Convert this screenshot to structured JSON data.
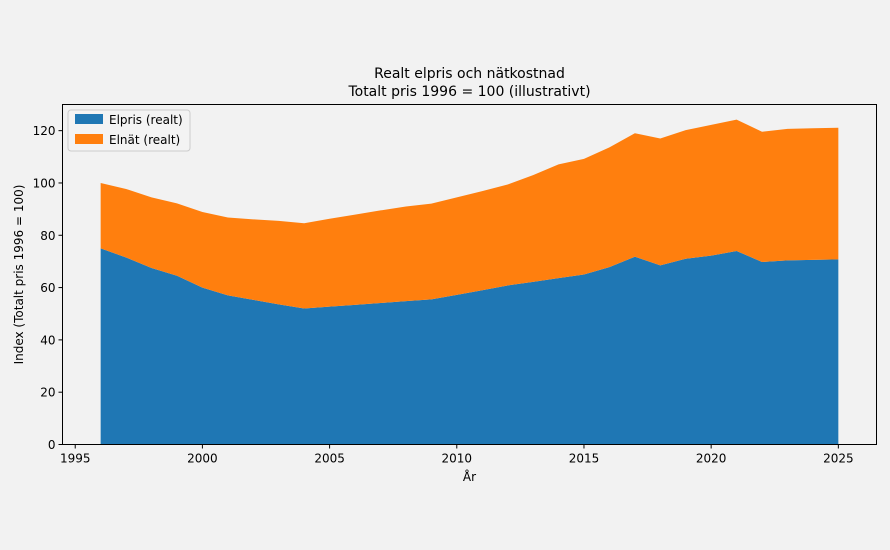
{
  "chart_data": {
    "type": "area",
    "stacked": true,
    "title": "Realt elpris och nätkostnad",
    "subtitle": "Totalt pris 1996 = 100 (illustrativt)",
    "xlabel": "År",
    "ylabel": "Index (Totalt pris 1996 = 100)",
    "xlim": [
      1994.5,
      2026.5
    ],
    "ylim": [
      0,
      130
    ],
    "xticks": [
      1995,
      2000,
      2005,
      2010,
      2015,
      2020,
      2025
    ],
    "yticks": [
      0,
      20,
      40,
      60,
      80,
      100,
      120
    ],
    "legend_position": "top-left",
    "x": [
      1996,
      1997,
      1998,
      1999,
      2000,
      2001,
      2002,
      2003,
      2004,
      2005,
      2006,
      2007,
      2008,
      2009,
      2010,
      2011,
      2012,
      2013,
      2014,
      2015,
      2016,
      2017,
      2018,
      2019,
      2020,
      2021,
      2022,
      2023,
      2024,
      2025
    ],
    "series": [
      {
        "name": "Elpris (realt)",
        "color": "#1f77b4",
        "values": [
          75,
          71.5,
          67.5,
          64.5,
          60,
          57,
          55.3,
          53.6,
          52,
          52.7,
          53.4,
          54.1,
          54.8,
          55.5,
          57.2,
          59,
          60.8,
          62.2,
          63.6,
          65,
          67.8,
          71.8,
          68.5,
          71,
          72.2,
          74,
          69.8,
          70.4,
          70.6,
          70.8
        ]
      },
      {
        "name": "Elnät (realt)",
        "color": "#ff7f0e",
        "values": [
          25,
          26.2,
          27,
          27.7,
          28.9,
          29.8,
          30.8,
          31.9,
          32.6,
          33.6,
          34.5,
          35.4,
          36.2,
          36.6,
          37.3,
          37.9,
          38.6,
          40.8,
          43.5,
          44.2,
          45.8,
          47.2,
          48.5,
          49.2,
          50,
          50.2,
          49.8,
          50.3,
          50.3,
          50.3
        ]
      }
    ]
  }
}
